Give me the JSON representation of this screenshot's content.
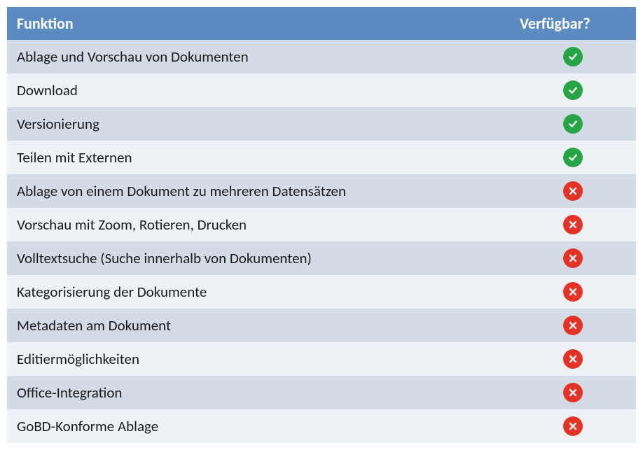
{
  "table": {
    "type": "table",
    "header_bg": "#5b8bc0",
    "header_text_color": "#ffffff",
    "row_odd_bg": "#d3dbe7",
    "row_even_bg": "#eef2f7",
    "text_color": "#1a1a1a",
    "font_size_header": 22,
    "font_size_cell": 21,
    "columns": [
      {
        "label": "Funktion",
        "key": "feature"
      },
      {
        "label": "Verfügbar?",
        "key": "available"
      }
    ],
    "icon_yes_color": "#27a544",
    "icon_no_color": "#e53227",
    "rows": [
      {
        "feature": "Ablage und Vorschau von Dokumenten",
        "available": true
      },
      {
        "feature": "Download",
        "available": true
      },
      {
        "feature": "Versionierung",
        "available": true
      },
      {
        "feature": "Teilen mit Externen",
        "available": true
      },
      {
        "feature": "Ablage von einem Dokument zu mehreren Datensätzen",
        "available": false
      },
      {
        "feature": "Vorschau mit Zoom, Rotieren, Drucken",
        "available": false
      },
      {
        "feature": "Volltextsuche (Suche innerhalb von Dokumenten)",
        "available": false
      },
      {
        "feature": "Kategorisierung der Dokumente",
        "available": false
      },
      {
        "feature": "Metadaten am Dokument",
        "available": false
      },
      {
        "feature": "Editiermöglichkeiten",
        "available": false
      },
      {
        "feature": "Office-Integration",
        "available": false
      },
      {
        "feature": "GoBD-Konforme Ablage",
        "available": false
      }
    ]
  }
}
